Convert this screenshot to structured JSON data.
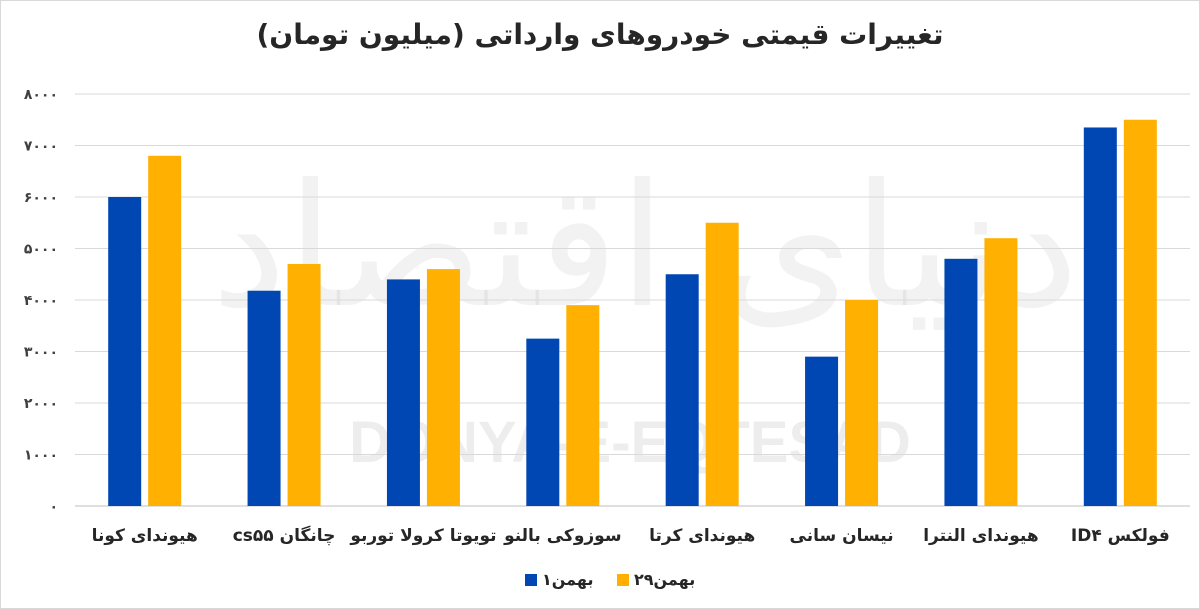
{
  "chart_data": {
    "type": "bar",
    "title": "تغییرات قیمتی خودروهای وارداتی (میلیون تومان)",
    "categories": [
      "هیوندای کونا",
      "چانگان cs۵۵",
      "تویوتا کرولا توربو",
      "سوزوکی بالنو",
      "هیوندای کرتا",
      "نیسان سانی",
      "هیوندای النترا",
      "فولکس ID۴"
    ],
    "series": [
      {
        "name": "۱بهمن",
        "color": "#0047b3",
        "values": [
          6000,
          4180,
          4400,
          3250,
          4500,
          2900,
          4800,
          7350
        ]
      },
      {
        "name": "۲۹بهمن",
        "color": "#ffb000",
        "values": [
          6800,
          4700,
          4600,
          3900,
          5500,
          4000,
          5200,
          7500
        ]
      }
    ],
    "ylim": [
      0,
      8000
    ],
    "yticks": [
      "۰",
      "۱۰۰۰",
      "۲۰۰۰",
      "۳۰۰۰",
      "۴۰۰۰",
      "۵۰۰۰",
      "۶۰۰۰",
      "۷۰۰۰",
      "۸۰۰۰"
    ],
    "grid": true,
    "legend": "bottom"
  },
  "watermark": {
    "latin": "DONYA-E-EQTESAD",
    "persian": "دنیای اقتصاد"
  }
}
